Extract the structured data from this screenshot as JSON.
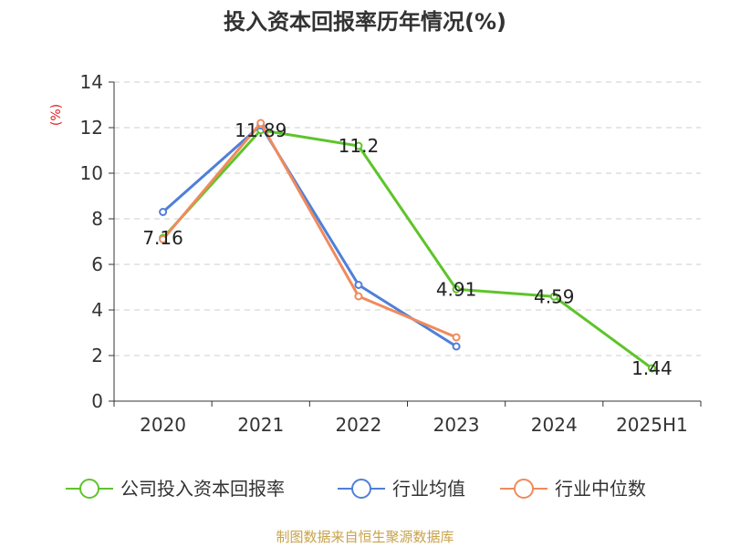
{
  "chart_data": {
    "type": "line",
    "title": "投入资本回报率历年情况(%)",
    "ylabel": "(%)",
    "xlabel": "",
    "categories": [
      "2020",
      "2021",
      "2022",
      "2023",
      "2024",
      "2025H1"
    ],
    "ylim": [
      0,
      14
    ],
    "yticks": [
      0,
      2,
      4,
      6,
      8,
      10,
      12,
      14
    ],
    "grid": "horizontal-dashed",
    "legend_position": "bottom",
    "series": [
      {
        "name": "公司投入资本回报率",
        "color": "#5ec42a",
        "values": [
          7.16,
          11.89,
          11.2,
          4.91,
          4.59,
          1.44
        ],
        "labels": [
          "7.16",
          "11.89",
          "11.2",
          "4.91",
          "4.59",
          "1.44"
        ]
      },
      {
        "name": "行业均值",
        "color": "#4f7fd8",
        "values": [
          8.3,
          12.1,
          5.1,
          2.4,
          null,
          null
        ]
      },
      {
        "name": "行业中位数",
        "color": "#f08a5d",
        "values": [
          7.1,
          12.2,
          4.6,
          2.8,
          null,
          null
        ]
      }
    ]
  },
  "source": "制图数据来自恒生聚源数据库"
}
